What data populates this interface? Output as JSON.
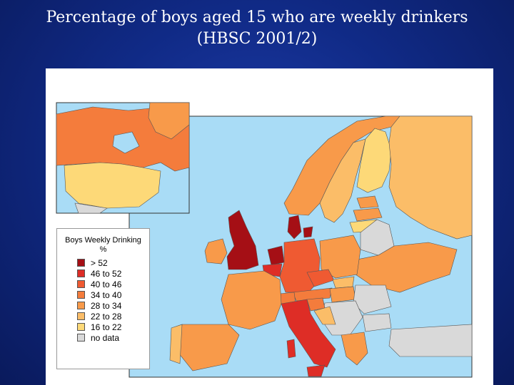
{
  "title": {
    "line1": "Percentage of boys aged 15 who are weekly drinkers",
    "line2": "(HBSC 2001/2)"
  },
  "legend": {
    "title_line1": "Boys Weekly Drinking",
    "title_line2": "%",
    "items": [
      {
        "label": "> 52",
        "color": "#a50f15"
      },
      {
        "label": "46 to 52",
        "color": "#de2d26"
      },
      {
        "label": "40 to 46",
        "color": "#ef5a32"
      },
      {
        "label": "34 to 40",
        "color": "#f47c3c"
      },
      {
        "label": "28 to 34",
        "color": "#f89a4a"
      },
      {
        "label": "22 to 28",
        "color": "#fbbd68"
      },
      {
        "label": "16 to 22",
        "color": "#fdd978"
      },
      {
        "label": "no data",
        "color": "#d9d9d9"
      }
    ]
  },
  "colors": {
    "sea": "#a9dcf6",
    "background": "#122d8a"
  }
}
